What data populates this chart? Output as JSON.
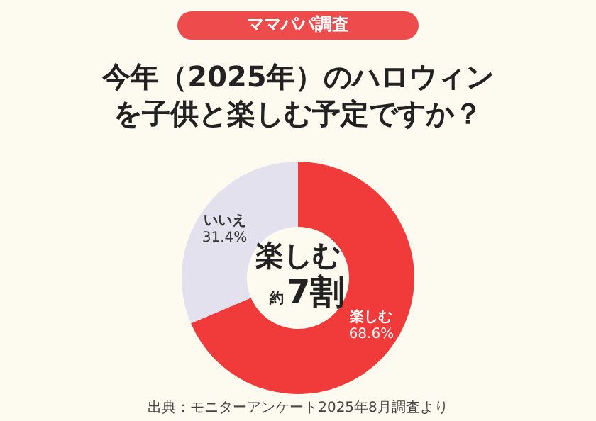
{
  "chart_data": {
    "type": "donut",
    "subtitle": "ママパパ調査",
    "title": "今年（2025年）のハロウィンを子供と楽しむ予定ですか？",
    "categories": [
      "楽しむ",
      "いいえ"
    ],
    "values": [
      68.6,
      31.4
    ],
    "value_labels": [
      "68.6%",
      "31.4%"
    ],
    "colors": [
      "#f13b3b",
      "#e3e1ee"
    ],
    "annotations": [
      "楽しむ",
      "約",
      "7割",
      "出典：モニターアンケート2025年8月調査より"
    ],
    "legend": false
  }
}
